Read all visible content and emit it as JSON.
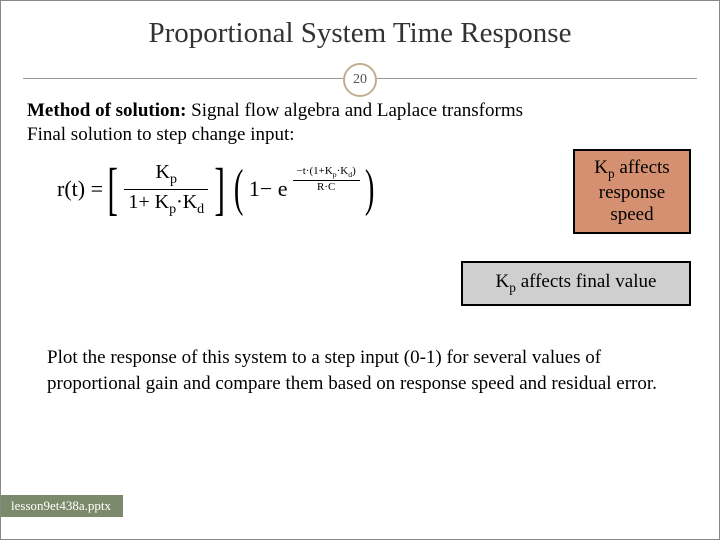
{
  "title": "Proportional System Time Response",
  "page_number": "20",
  "method_label": "Method of solution:",
  "method_text": "  Signal flow algebra and Laplace transforms",
  "final_solution_text": "Final solution to step change input:",
  "equation": {
    "lhs": "r(t) =",
    "frac_num": "K",
    "frac_num_sub": "p",
    "frac_den_pre": "1+ K",
    "frac_den_sub1": "p",
    "frac_den_mid": "·K",
    "frac_den_sub2": "d",
    "one_minus_e": "1− e",
    "exp_num_pre": "−t·",
    "exp_num_paren_open": "(",
    "exp_num_inner_pre": "1+K",
    "exp_num_inner_sub1": "p",
    "exp_num_inner_mid": "·K",
    "exp_num_inner_sub2": "d",
    "exp_num_paren_close": ")",
    "exp_den": "R·C"
  },
  "box1_line1_pre": "K",
  "box1_line1_sub": "p",
  "box1_line1_post": " affects",
  "box1_line2": "response",
  "box1_line3": "speed",
  "box2_pre": "K",
  "box2_sub": "p",
  "box2_post": " affects final value",
  "plot_text": "Plot the response of this system to a step input (0-1) for several values of proportional gain and compare them based on response speed and residual error.",
  "footer": "lesson9et438a.pptx",
  "colors": {
    "box_orange": "#d49070",
    "box_grey": "#cfcfcf",
    "footer_bg": "#7a8a6a",
    "circle_border": "#c0b090"
  }
}
